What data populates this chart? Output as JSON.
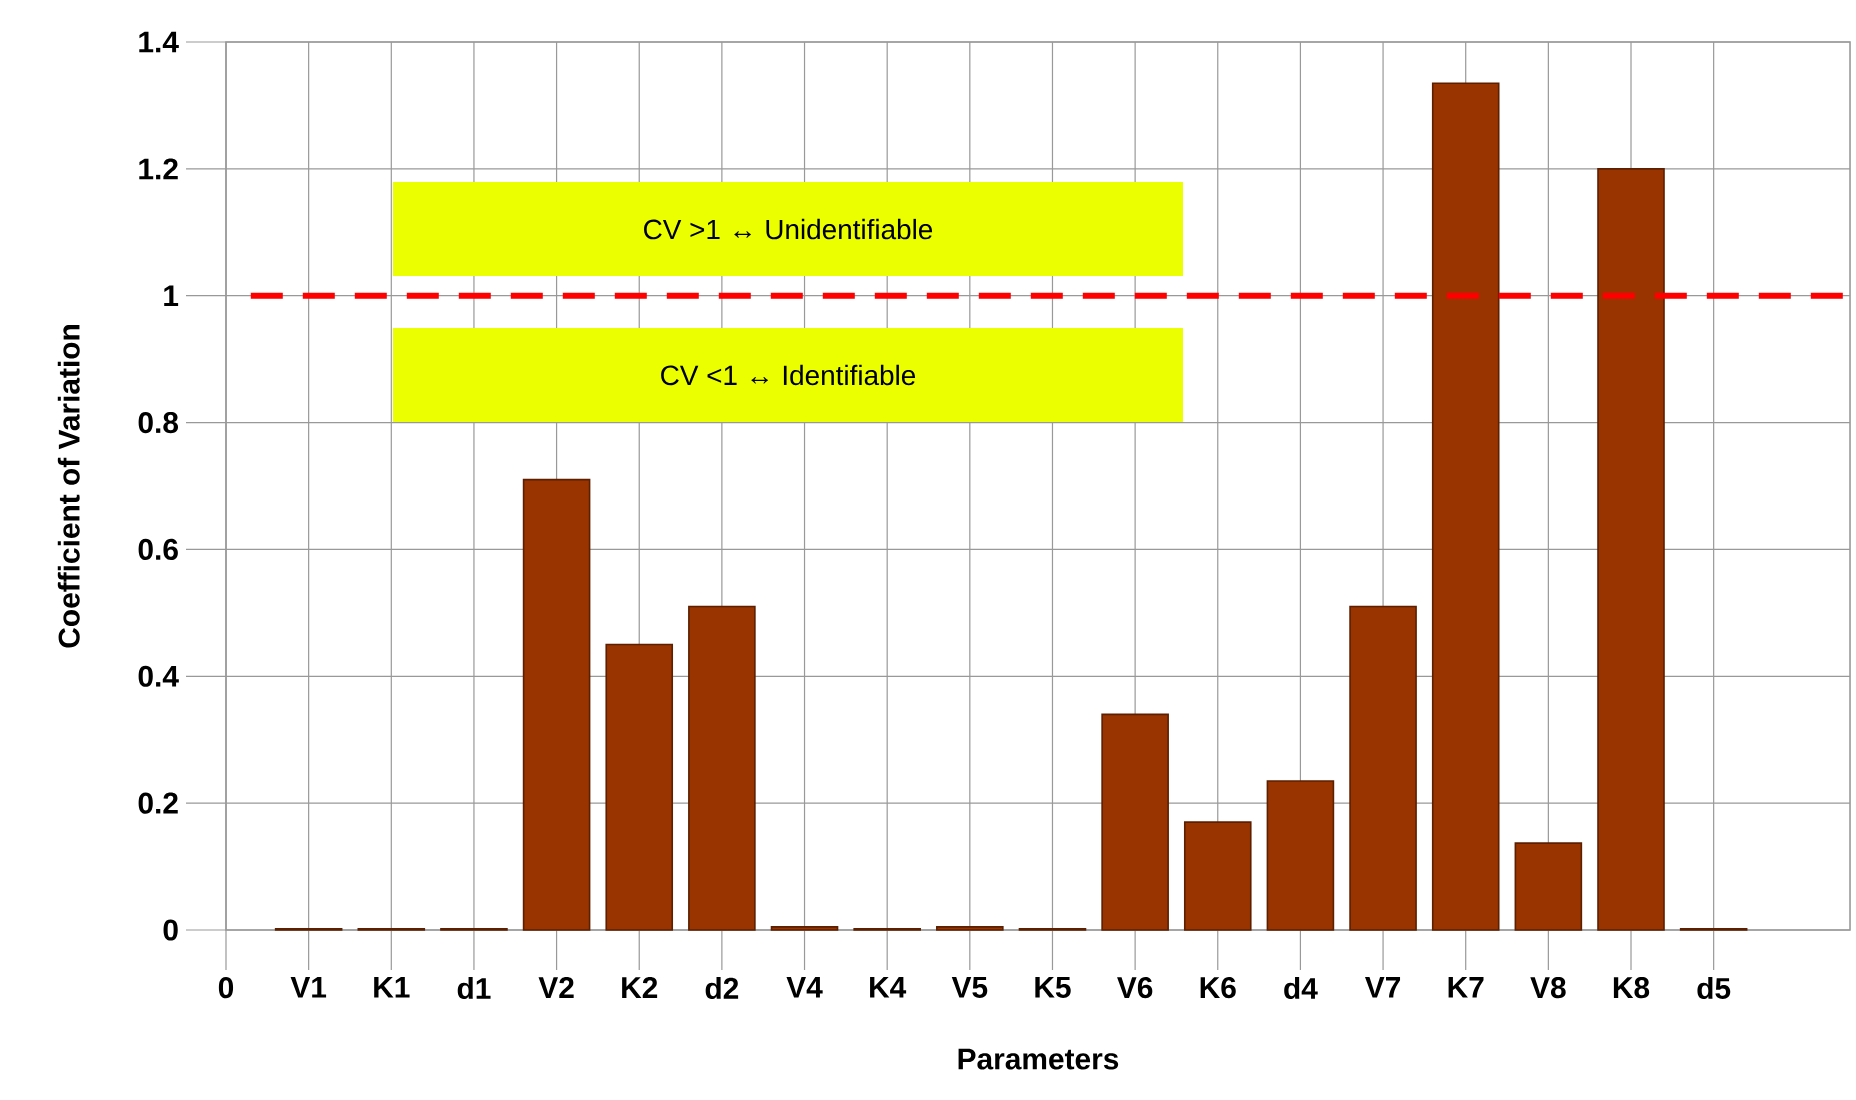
{
  "chart_data": {
    "type": "bar",
    "xlabel": "Parameters",
    "ylabel": "Coefficient of Variation",
    "categories": [
      "0",
      "V1",
      "K1",
      "d1",
      "V2",
      "K2",
      "d2",
      "V4",
      "K4",
      "V5",
      "K5",
      "V6",
      "K6",
      "d4",
      "V7",
      "K7",
      "V8",
      "K8",
      "d5"
    ],
    "values": [
      null,
      0.002,
      0.002,
      0.002,
      0.71,
      0.45,
      0.51,
      0.005,
      0.002,
      0.005,
      0.002,
      0.34,
      0.17,
      0.235,
      0.51,
      1.335,
      0.137,
      1.2,
      0.002
    ],
    "color": "#993300",
    "ylim": [
      0,
      1.4
    ],
    "yticks": [
      0,
      0.2,
      0.4,
      0.6,
      0.8,
      1,
      1.2,
      1.4
    ],
    "grid": true,
    "ref_lines": [
      {
        "axis": "y",
        "value": 1,
        "color": "#ff0000",
        "line_style": "dashed"
      }
    ],
    "annotations": [
      "CV >1 ↔  Unidentifiable",
      "CV <1 ↔  Identifiable"
    ]
  }
}
